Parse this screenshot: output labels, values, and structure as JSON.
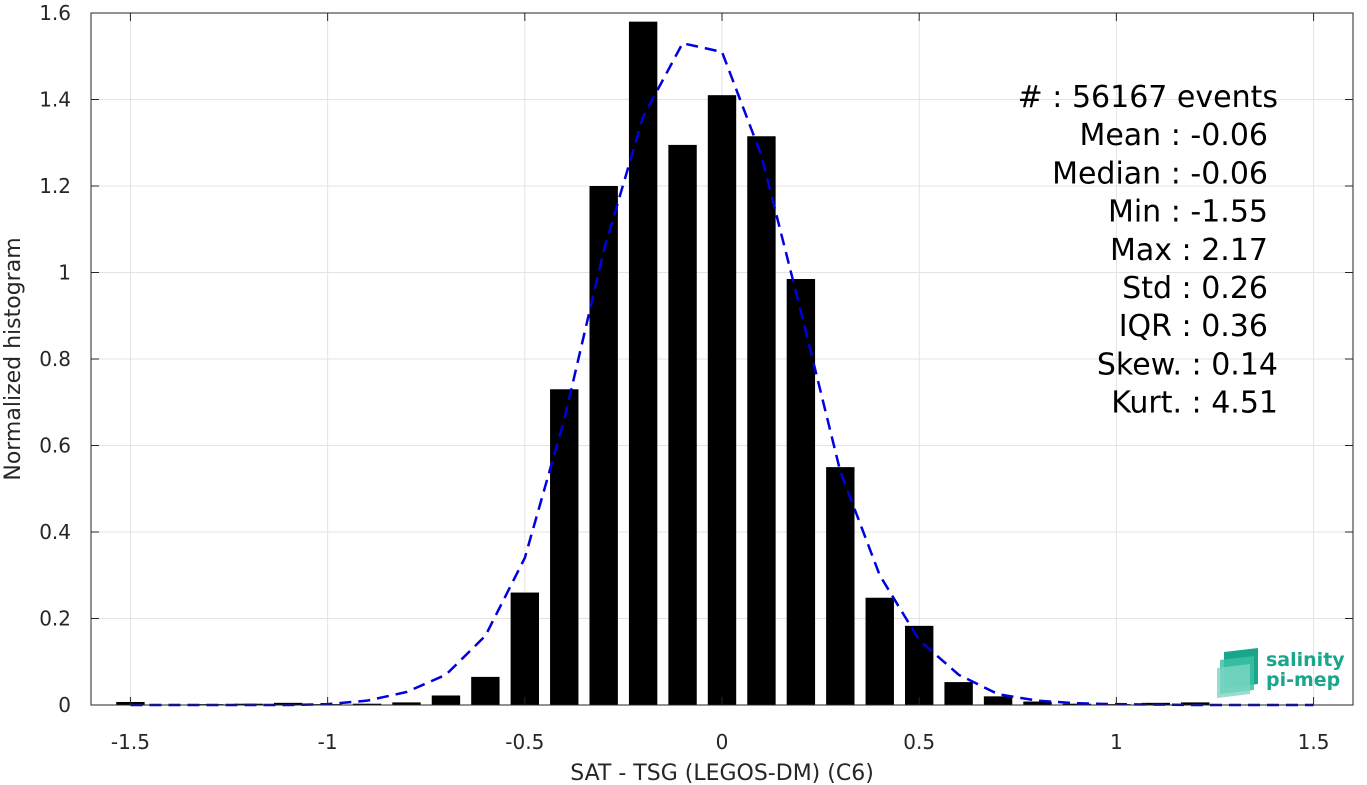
{
  "chart_data": {
    "type": "bar",
    "xlabel": "SAT - TSG (LEGOS-DM) (C6)",
    "ylabel": "Normalized histogram",
    "xlim": [
      -1.6,
      1.6
    ],
    "ylim": [
      0,
      1.6
    ],
    "xticks": [
      -1.5,
      -1,
      -0.5,
      0,
      0.5,
      1,
      1.5
    ],
    "xtick_labels": [
      "-1.5",
      "-1",
      "-0.5",
      "0",
      "0.5",
      "1",
      "1.5"
    ],
    "yticks": [
      0,
      0.2,
      0.4,
      0.6,
      0.8,
      1,
      1.2,
      1.4,
      1.6
    ],
    "ytick_labels": [
      "0",
      "0.2",
      "0.4",
      "0.6",
      "0.8",
      "1",
      "1.2",
      "1.4",
      "1.6"
    ],
    "grid": true,
    "bar_color": "#000000",
    "bars": {
      "x": [
        -1.5,
        -1.4,
        -1.3,
        -1.2,
        -1.1,
        -1.0,
        -0.9,
        -0.8,
        -0.7,
        -0.6,
        -0.5,
        -0.4,
        -0.3,
        -0.2,
        -0.1,
        0.0,
        0.1,
        0.2,
        0.3,
        0.4,
        0.5,
        0.6,
        0.7,
        0.8,
        0.9,
        1.0,
        1.1,
        1.2,
        1.3,
        1.4,
        1.5
      ],
      "values": [
        0.007,
        0.001,
        0.002,
        0.003,
        0.005,
        0.002,
        0.003,
        0.006,
        0.022,
        0.065,
        0.26,
        0.73,
        1.2,
        1.58,
        1.295,
        1.41,
        1.315,
        0.985,
        0.55,
        0.248,
        0.183,
        0.053,
        0.02,
        0.008,
        0.003,
        0.002,
        0.005,
        0.006,
        0.001,
        0.001,
        0.001
      ]
    },
    "fit_curve": {
      "style": "dashed",
      "color": "#0000e0",
      "x": [
        -1.5,
        -1.4,
        -1.3,
        -1.2,
        -1.1,
        -1.0,
        -0.9,
        -0.8,
        -0.7,
        -0.6,
        -0.5,
        -0.4,
        -0.3,
        -0.2,
        -0.1,
        0.0,
        0.1,
        0.2,
        0.3,
        0.4,
        0.5,
        0.6,
        0.7,
        0.8,
        0.9,
        1.0,
        1.1,
        1.2,
        1.3,
        1.4,
        1.5
      ],
      "values": [
        0.0,
        0.0,
        0.0,
        0.0,
        0.0,
        0.002,
        0.01,
        0.03,
        0.07,
        0.16,
        0.34,
        0.66,
        1.05,
        1.36,
        1.53,
        1.51,
        1.27,
        0.91,
        0.54,
        0.3,
        0.15,
        0.07,
        0.025,
        0.01,
        0.004,
        0.002,
        0.001,
        0.0,
        0.0,
        0.0,
        0.0
      ]
    },
    "stats": [
      "#  : 56167 events",
      "Mean : -0.06",
      "Median : -0.06",
      "Min : -1.55",
      "Max : 2.17",
      "Std : 0.26",
      "IQR : 0.36",
      "Skew. : 0.14",
      "Kurt. : 4.51"
    ]
  },
  "logo": {
    "line1": "salinity",
    "line2": "pi-mep",
    "color": "#1aa68a"
  }
}
